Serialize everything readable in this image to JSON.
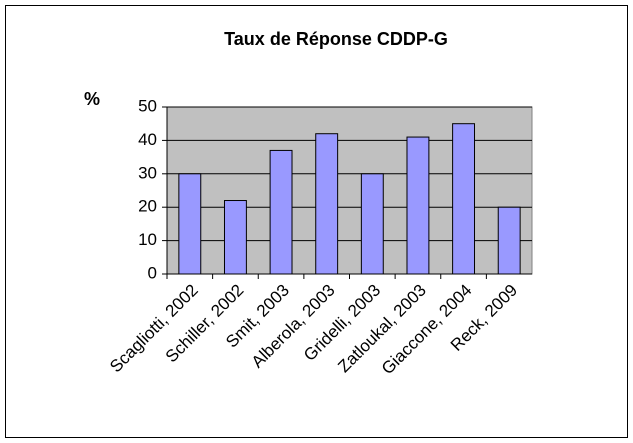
{
  "chart_data": {
    "type": "bar",
    "title": "Taux de Réponse CDDP-G",
    "y_label": "%",
    "categories": [
      "Scagliotti, 2002",
      "Schiller, 2002",
      "Smit, 2003",
      "Alberola, 2003",
      "Gridelli, 2003",
      "Zatloukal, 2003",
      "Giaccone, 2004",
      "Reck, 2009"
    ],
    "values": [
      30,
      22,
      37,
      42,
      30,
      41,
      45,
      20
    ],
    "color": "#9999ff",
    "ylim": [
      0,
      50
    ],
    "yticks": [
      0,
      10,
      20,
      30,
      40,
      50
    ],
    "grid": true
  }
}
